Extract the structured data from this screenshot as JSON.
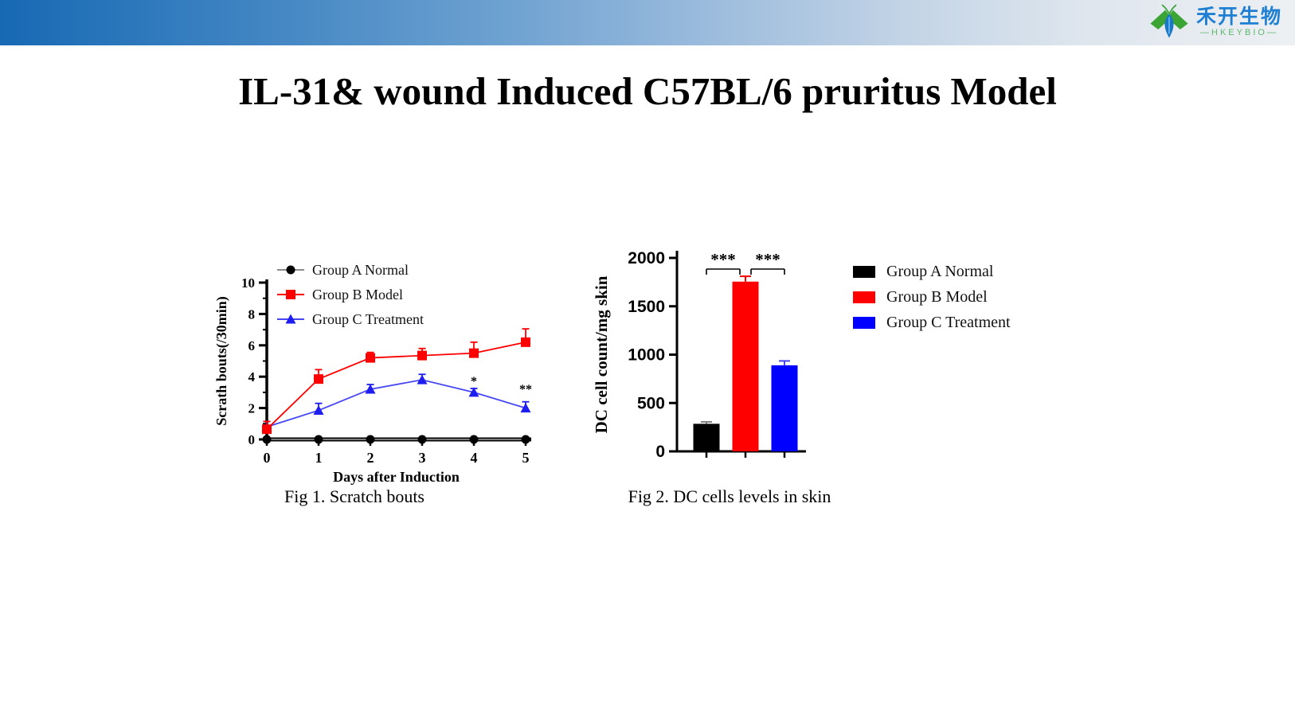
{
  "header": {
    "logo_cn": "禾开生物",
    "logo_en": "—HKEYBIO—"
  },
  "title": "IL-31& wound Induced C57BL/6 pruritus Model",
  "figures": {
    "fig1_caption": "Fig 1. Scratch bouts",
    "fig2_caption": "Fig 2. DC cells levels in skin"
  },
  "colors": {
    "header_blue": "#1769b4",
    "group_a": "#000000",
    "group_b": "#ff0000",
    "group_c": "#0000ff",
    "logo_blue": "#1f7fd2",
    "logo_green": "#5cb86a"
  },
  "chart_data": [
    {
      "type": "line",
      "title": "",
      "x": [
        0,
        1,
        2,
        3,
        4,
        5
      ],
      "xlabel": "Days after Induction",
      "ylabel": "Scrath bouts(/30min)",
      "ylim": [
        0,
        10
      ],
      "ytick_step": 2,
      "grid": false,
      "legend_position": "inside-top-left",
      "series": [
        {
          "name": "Group A Normal",
          "marker": "circle",
          "color": "#000000",
          "line_color": "#8c8c8c",
          "values": [
            0,
            0,
            0,
            0,
            0,
            0
          ],
          "errors": [
            0,
            0,
            0,
            0,
            0,
            0
          ]
        },
        {
          "name": "Group B Model",
          "marker": "square",
          "color": "#ff0000",
          "line_color": "#ff0000",
          "values": [
            0.65,
            3.85,
            5.2,
            5.35,
            5.5,
            6.2
          ],
          "errors": [
            0.5,
            0.6,
            0.35,
            0.45,
            0.7,
            0.85
          ]
        },
        {
          "name": "Group C Treatment",
          "marker": "triangle",
          "color": "#1e1ef0",
          "line_color": "#4646f2",
          "values": [
            0.8,
            1.85,
            3.2,
            3.8,
            3.0,
            2.0
          ],
          "errors": [
            0.35,
            0.45,
            0.3,
            0.35,
            0.25,
            0.4
          ]
        }
      ],
      "annotations": [
        {
          "x": 4,
          "y": 3.45,
          "text": "*"
        },
        {
          "x": 5,
          "y": 2.95,
          "text": "**"
        }
      ]
    },
    {
      "type": "bar",
      "title": "",
      "xlabel": "",
      "ylabel": "DC cell count/mg skin",
      "ylim": [
        0,
        2000
      ],
      "ytick_step": 500,
      "grid": false,
      "categories": [
        "Group A Normal",
        "Group B Model",
        "Group C Treatment"
      ],
      "values": [
        285,
        1755,
        890
      ],
      "errors": [
        20,
        55,
        45
      ],
      "bar_colors": [
        "#000000",
        "#ff0000",
        "#0000ff"
      ],
      "error_colors": [
        "#7f7f7f",
        "#ff0000",
        "#4646f2"
      ],
      "significance": [
        {
          "from": 0,
          "to": 1,
          "text": "***"
        },
        {
          "from": 1,
          "to": 2,
          "text": "***"
        }
      ],
      "legend_position": "right-outside",
      "legend": [
        {
          "label": "Group A Normal",
          "color": "#000000"
        },
        {
          "label": "Group B Model",
          "color": "#ff0000"
        },
        {
          "label": "Group C Treatment",
          "color": "#0000ff"
        }
      ]
    }
  ]
}
